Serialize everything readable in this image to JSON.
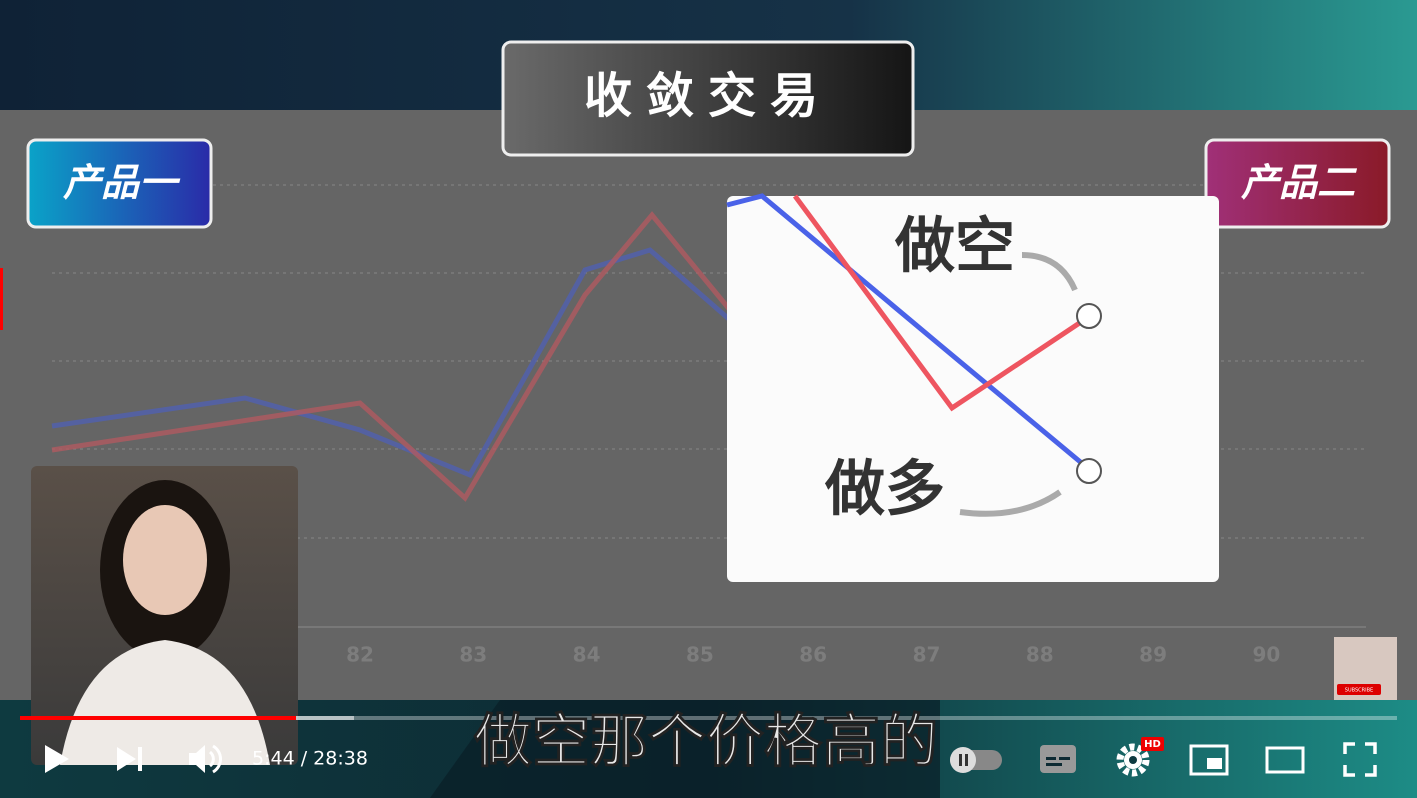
{
  "video": {
    "slide_title": "收敛交易",
    "left_label": "产品一",
    "right_label": "产品二",
    "inset": {
      "short_label": "做空",
      "long_label": "做多"
    },
    "x_axis_labels": [
      "82",
      "83",
      "84",
      "85",
      "86",
      "87",
      "88",
      "89",
      "90"
    ],
    "caption": "做空那个价格高的",
    "time": "5:44 / 28:38",
    "quality_badge": "HD",
    "subscribe": "SUBSCRIBE"
  }
}
